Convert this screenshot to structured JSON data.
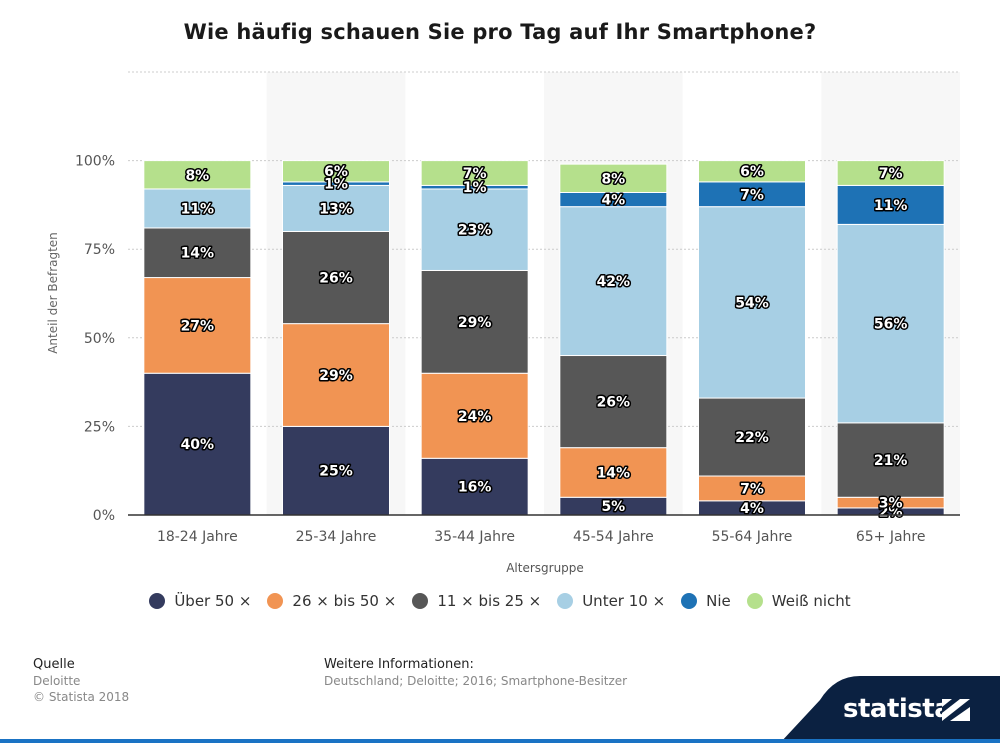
{
  "chart_data": {
    "type": "bar",
    "stacked": true,
    "title": "Wie häufig schauen Sie pro Tag auf Ihr Smartphone?",
    "xlabel": "Altersgruppe",
    "ylabel": "Anteil der Befragten",
    "categories": [
      "18-24 Jahre",
      "25-34 Jahre",
      "35-44 Jahre",
      "45-54 Jahre",
      "55-64 Jahre",
      "65+ Jahre"
    ],
    "ylim": [
      0,
      125
    ],
    "yticks": [
      0,
      25,
      50,
      75,
      100
    ],
    "ytick_labels": [
      "0%",
      "25%",
      "50%",
      "75%",
      "100%"
    ],
    "grid": true,
    "legend_position": "bottom",
    "series": [
      {
        "name": "Über 50 ×",
        "color": "#343b5e",
        "values": [
          40,
          25,
          16,
          5,
          4,
          2
        ],
        "labels": [
          "40%",
          "25%",
          "16%",
          "5%",
          "4%",
          "2%"
        ]
      },
      {
        "name": "26 × bis 50 ×",
        "color": "#f19453",
        "values": [
          27,
          29,
          24,
          14,
          7,
          3
        ],
        "labels": [
          "27%",
          "29%",
          "24%",
          "14%",
          "7%",
          "3%"
        ]
      },
      {
        "name": "11 × bis 25 ×",
        "color": "#575757",
        "values": [
          14,
          26,
          29,
          26,
          22,
          21
        ],
        "labels": [
          "14%",
          "26%",
          "29%",
          "26%",
          "22%",
          "21%"
        ]
      },
      {
        "name": "Unter 10 ×",
        "color": "#a7cfe4",
        "values": [
          11,
          13,
          23,
          42,
          54,
          56
        ],
        "labels": [
          "11%",
          "13%",
          "23%",
          "42%",
          "54%",
          "56%"
        ]
      },
      {
        "name": "Nie",
        "color": "#1e72b5",
        "values": [
          0,
          1,
          1,
          4,
          7,
          11
        ],
        "labels": [
          "",
          "1%",
          "1%",
          "4%",
          "7%",
          "11%"
        ]
      },
      {
        "name": "Weiß nicht",
        "color": "#b5e08c",
        "values": [
          8,
          6,
          7,
          8,
          6,
          7
        ],
        "labels": [
          "8%",
          "6%",
          "7%",
          "8%",
          "6%",
          "7%"
        ]
      }
    ]
  },
  "footer": {
    "source_heading": "Quelle",
    "source_name": "Deloitte",
    "copyright": "© Statista 2018",
    "info_heading": "Weitere Informationen:",
    "info_text": "Deutschland; Deloitte; 2016; Smartphone-Besitzer"
  },
  "brand": {
    "name": "statista",
    "band_color": "#0b2141",
    "accent_color": "#1a73c4"
  }
}
